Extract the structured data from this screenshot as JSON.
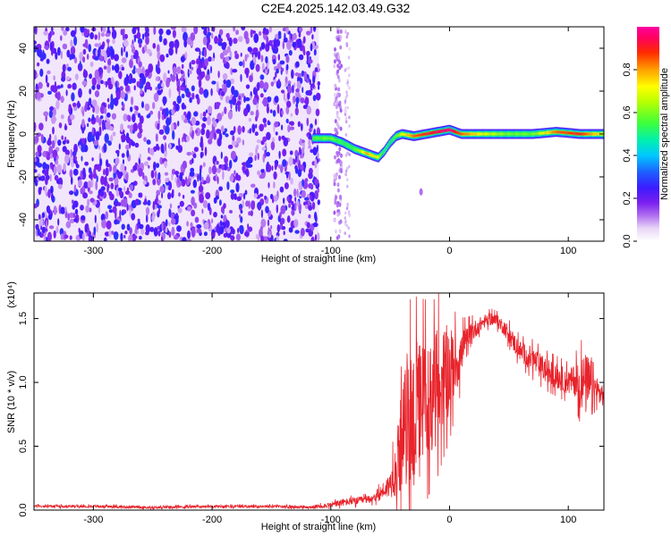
{
  "title": "C2E4.2025.142.03.49.G32",
  "chart_data": [
    {
      "type": "heatmap",
      "xlabel": "Height of straight line (km)",
      "ylabel": "Frequency (Hz)",
      "xlim": [
        -350,
        130
      ],
      "ylim": [
        -50,
        50
      ],
      "xticks": [
        -300,
        -200,
        -100,
        0,
        100
      ],
      "yticks": [
        -40,
        -20,
        0,
        20,
        40
      ],
      "colorbar": {
        "label": "Normalized spectral amplitude",
        "range": [
          0.0,
          1.0
        ],
        "ticks": [
          0.0,
          0.2,
          0.4,
          0.6,
          0.8
        ],
        "tick_labels": [
          "0.0",
          "0.2",
          "0.4",
          "0.6",
          "0.8"
        ],
        "colormap": "white-purple-blue-cyan-green-yellow-red-magenta"
      },
      "noise_region_x": [
        -350,
        -110
      ],
      "signal_ridge": {
        "x": [
          -115,
          -100,
          -90,
          -80,
          -70,
          -60,
          -55,
          -50,
          -45,
          -40,
          -30,
          -20,
          -10,
          0,
          10,
          30,
          50,
          70,
          90,
          110,
          130
        ],
        "frequency": [
          -2,
          -2,
          -4,
          -7,
          -9,
          -11,
          -8,
          -4,
          -1,
          0,
          -1,
          0,
          1,
          2,
          0,
          0,
          0,
          0,
          1,
          0,
          0
        ],
        "amplitude": [
          0.55,
          0.6,
          0.5,
          0.55,
          0.8,
          0.7,
          0.45,
          0.4,
          0.6,
          0.7,
          0.85,
          0.9,
          0.95,
          1.0,
          0.85,
          0.7,
          0.6,
          0.6,
          0.85,
          0.9,
          0.7
        ]
      }
    },
    {
      "type": "line",
      "xlabel": "Height of straight line (km)",
      "ylabel": "SNR (10 * v/v)",
      "yscale_label": "(x10⁴)",
      "xlim": [
        -350,
        130
      ],
      "ylim": [
        0,
        1.7
      ],
      "xticks": [
        -300,
        -200,
        -100,
        0,
        100
      ],
      "yticks": [
        0.0,
        0.5,
        1.0,
        1.5
      ],
      "ytick_labels": [
        "0.0",
        "0.5",
        "1.0",
        "1.5"
      ],
      "series": [
        {
          "color": "#e8232b",
          "x": [
            -350,
            -300,
            -250,
            -200,
            -150,
            -120,
            -100,
            -90,
            -80,
            -70,
            -60,
            -50,
            -45,
            -40,
            -35,
            -30,
            -25,
            -20,
            -15,
            -10,
            -5,
            0,
            5,
            10,
            15,
            20,
            25,
            30,
            35,
            40,
            45,
            50,
            55,
            60,
            70,
            80,
            90,
            100,
            105,
            110,
            115,
            120,
            125,
            130
          ],
          "y": [
            0.03,
            0.03,
            0.02,
            0.03,
            0.03,
            0.02,
            0.04,
            0.06,
            0.07,
            0.08,
            0.12,
            0.2,
            0.35,
            0.55,
            0.75,
            0.72,
            0.78,
            0.85,
            0.9,
            0.98,
            1.05,
            1.1,
            1.15,
            1.22,
            1.32,
            1.4,
            1.45,
            1.48,
            1.5,
            1.48,
            1.44,
            1.38,
            1.3,
            1.24,
            1.18,
            1.1,
            1.05,
            1.0,
            1.02,
            1.0,
            0.98,
            0.95,
            0.92,
            0.9
          ],
          "spread": [
            0.01,
            0.01,
            0.01,
            0.01,
            0.01,
            0.01,
            0.02,
            0.03,
            0.03,
            0.03,
            0.05,
            0.1,
            0.25,
            0.4,
            0.55,
            0.6,
            0.55,
            0.5,
            0.45,
            0.45,
            0.4,
            0.35,
            0.25,
            0.18,
            0.12,
            0.08,
            0.06,
            0.05,
            0.05,
            0.05,
            0.06,
            0.07,
            0.08,
            0.08,
            0.1,
            0.1,
            0.1,
            0.1,
            0.12,
            0.2,
            0.25,
            0.25,
            0.12,
            0.08
          ]
        }
      ]
    }
  ]
}
